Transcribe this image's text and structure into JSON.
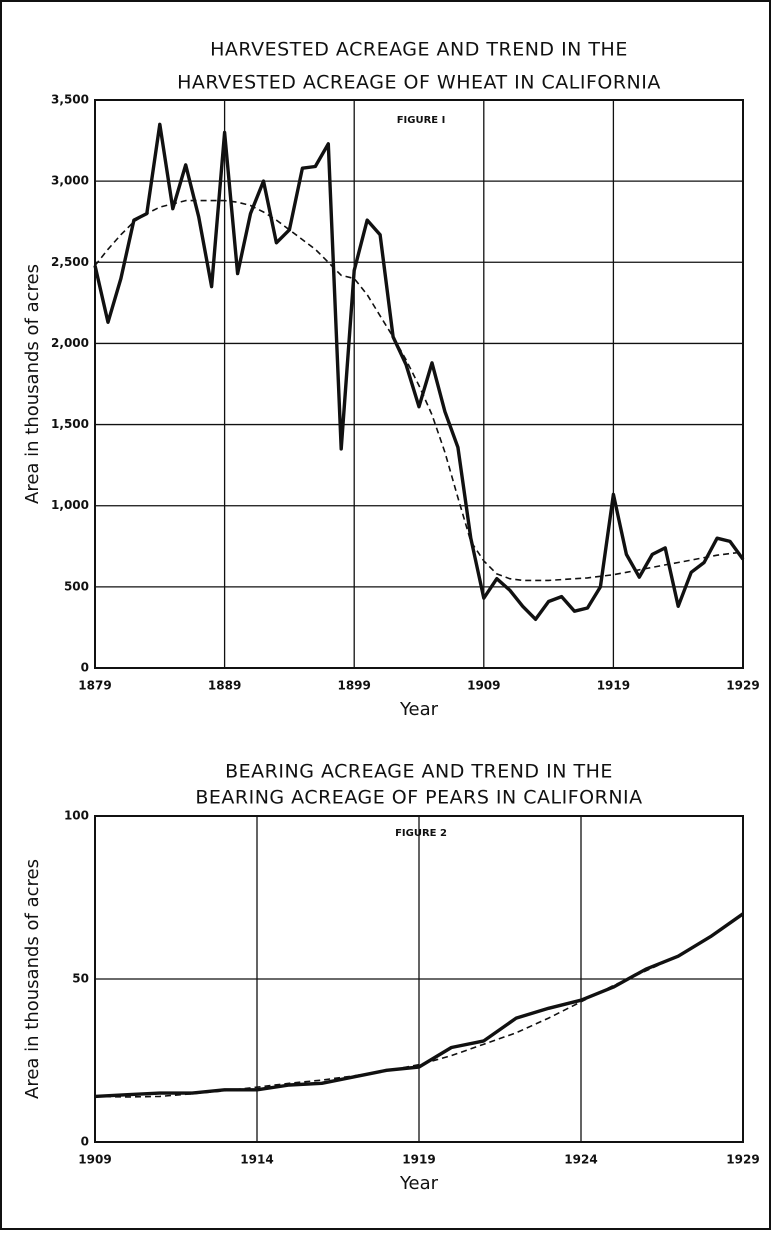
{
  "chart_data": [
    {
      "type": "line",
      "title": [
        "HARVESTED ACREAGE AND TREND IN THE",
        "HARVESTED ACREAGE OF WHEAT IN CALIFORNIA"
      ],
      "annotation": "FIGURE I",
      "x_label": "Year",
      "y_label": "Area in thousands of acres",
      "x": [
        1879,
        1880,
        1881,
        1882,
        1883,
        1884,
        1885,
        1886,
        1887,
        1888,
        1889,
        1890,
        1891,
        1892,
        1893,
        1894,
        1895,
        1896,
        1897,
        1898,
        1899,
        1900,
        1901,
        1902,
        1903,
        1904,
        1905,
        1906,
        1907,
        1908,
        1909,
        1910,
        1911,
        1912,
        1913,
        1914,
        1915,
        1916,
        1917,
        1918,
        1919,
        1920,
        1921,
        1922,
        1923,
        1924,
        1925,
        1926,
        1927,
        1928,
        1929
      ],
      "series": [
        {
          "color": "#111111",
          "style": "solid",
          "values": [
            2480,
            2130,
            2400,
            2760,
            2800,
            3350,
            2830,
            3100,
            2780,
            2350,
            3300,
            2430,
            2800,
            3000,
            2620,
            2700,
            3080,
            3090,
            3230,
            1350,
            2450,
            2760,
            2670,
            2040,
            1870,
            1610,
            1880,
            1580,
            1360,
            800,
            430,
            550,
            480,
            380,
            300,
            410,
            440,
            350,
            370,
            500,
            1070,
            700,
            560,
            700,
            740,
            380,
            590,
            650,
            800,
            780,
            670
          ]
        },
        {
          "color": "#111111",
          "style": "dashed",
          "values": [
            2480,
            2580,
            2670,
            2750,
            2800,
            2840,
            2860,
            2880,
            2880,
            2880,
            2880,
            2870,
            2850,
            2810,
            2760,
            2700,
            2640,
            2580,
            2500,
            2420,
            2400,
            2300,
            2170,
            2040,
            1900,
            1740,
            1560,
            1330,
            1050,
            780,
            660,
            580,
            550,
            540,
            540,
            540,
            545,
            550,
            555,
            565,
            575,
            590,
            605,
            620,
            635,
            650,
            665,
            680,
            695,
            705,
            715
          ]
        }
      ],
      "xlim": [
        1879,
        1929
      ],
      "xticks": [
        1879,
        1889,
        1899,
        1909,
        1919,
        1929
      ],
      "ylim": [
        0,
        3500
      ],
      "yticks": [
        0,
        500,
        {
          "value": 1000,
          "label": "1,000"
        },
        {
          "value": 1500,
          "label": "1,500"
        },
        {
          "value": 2000,
          "label": "2,000"
        },
        {
          "value": 2500,
          "label": "2,500"
        },
        {
          "value": 3000,
          "label": "3,000"
        },
        {
          "value": 3500,
          "label": "3,500"
        }
      ],
      "grid": true
    },
    {
      "type": "line",
      "title": [
        "BEARING ACREAGE AND TREND IN THE",
        "BEARING ACREAGE OF PEARS IN CALIFORNIA"
      ],
      "annotation": "FIGURE 2",
      "x_label": "Year",
      "y_label": "Area in thousands of acres",
      "x": [
        1909,
        1910,
        1911,
        1912,
        1913,
        1914,
        1915,
        1916,
        1917,
        1918,
        1919,
        1920,
        1921,
        1922,
        1923,
        1924,
        1925,
        1926,
        1927,
        1928,
        1929
      ],
      "series": [
        {
          "color": "#111111",
          "style": "solid",
          "values": [
            14,
            14.5,
            15,
            15,
            16,
            16,
            17.5,
            18,
            20,
            22,
            23,
            29,
            31,
            38,
            41,
            43.5,
            47.5,
            53,
            57,
            63,
            70
          ]
        },
        {
          "color": "#111111",
          "style": "dashed",
          "values": [
            14,
            13.8,
            14,
            14.8,
            15.7,
            16.8,
            18,
            19,
            20.3,
            21.8,
            23.7,
            26.5,
            30,
            33.5,
            38,
            43,
            48,
            52.5,
            57,
            63,
            70
          ]
        }
      ],
      "xlim": [
        1909,
        1929
      ],
      "xticks": [
        1909,
        1914,
        1919,
        1924,
        1929
      ],
      "ylim": [
        0,
        100
      ],
      "yticks": [
        0,
        50,
        100
      ],
      "grid": true
    }
  ]
}
